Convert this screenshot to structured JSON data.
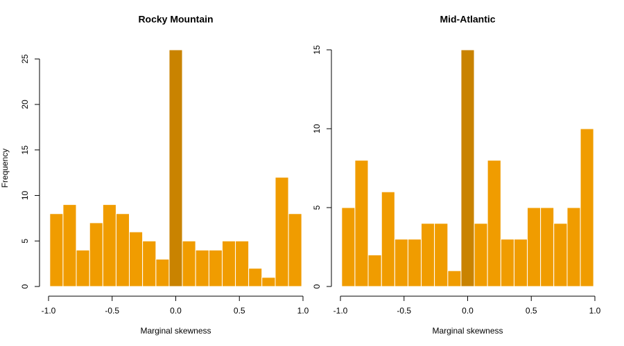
{
  "chart_data": [
    {
      "type": "histogram",
      "title": "Rocky Mountain",
      "xlabel": "Marginal skewness",
      "ylabel": "Frequency",
      "bins": [
        -0.99,
        -0.886,
        -0.782,
        -0.677,
        -0.573,
        -0.469,
        -0.365,
        -0.261,
        -0.156,
        -0.052,
        0.052,
        0.156,
        0.261,
        0.365,
        0.469,
        0.573,
        0.677,
        0.782,
        0.886,
        0.99
      ],
      "values": [
        8,
        9,
        4,
        7,
        9,
        8,
        6,
        5,
        3,
        26,
        5,
        4,
        4,
        5,
        5,
        2,
        1,
        12,
        8
      ],
      "color": "#f09c00",
      "highlight_color": "#c98300",
      "highlight_index": 9,
      "xlim": [
        -1,
        1
      ],
      "xticks": [
        {
          "value": -1,
          "label": "-1.0"
        },
        -0.5,
        {
          "value": 0,
          "label": "0.0"
        },
        0.5,
        {
          "value": 1,
          "label": "1.0"
        }
      ],
      "ylim": [
        0,
        26
      ],
      "yticks": [
        0,
        5,
        10,
        15,
        20,
        25
      ]
    },
    {
      "type": "histogram",
      "title": "Mid-Atlantic",
      "xlabel": "Marginal skewness",
      "bins": [
        -0.99,
        -0.886,
        -0.782,
        -0.677,
        -0.573,
        -0.469,
        -0.365,
        -0.261,
        -0.156,
        -0.052,
        0.052,
        0.156,
        0.261,
        0.365,
        0.469,
        0.573,
        0.677,
        0.782,
        0.886,
        0.99
      ],
      "values": [
        5,
        8,
        2,
        6,
        3,
        3,
        4,
        4,
        1,
        15,
        4,
        8,
        3,
        3,
        5,
        5,
        4,
        5,
        10
      ],
      "color": "#f09c00",
      "highlight_color": "#c98300",
      "highlight_index": 9,
      "xlim": [
        -1,
        1
      ],
      "xticks": [
        {
          "value": -1,
          "label": "-1.0"
        },
        -0.5,
        {
          "value": 0,
          "label": "0.0"
        },
        0.5,
        {
          "value": 1,
          "label": "1.0"
        }
      ],
      "ylim": [
        0,
        15
      ],
      "yticks": [
        0,
        5,
        10,
        15
      ]
    }
  ]
}
